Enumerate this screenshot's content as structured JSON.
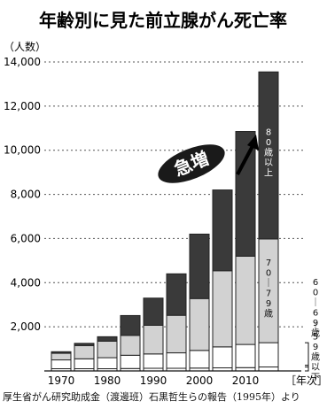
{
  "chart_data": {
    "type": "bar",
    "stacked": true,
    "title": "年齢別に見た前立腺がん死亡率",
    "ylabel": "（人数）",
    "xlabel": "［年次］",
    "ylim": [
      0,
      14000
    ],
    "yticks": [
      2000,
      4000,
      6000,
      8000,
      10000,
      12000,
      14000
    ],
    "ytick_labels": [
      "2,000",
      "4,000",
      "6,000",
      "8,000",
      "10,000",
      "12,000",
      "14,000"
    ],
    "x": [
      1970,
      1975,
      1980,
      1985,
      1990,
      1995,
      2000,
      2005,
      2010,
      2015
    ],
    "xtick_labels": [
      "1970",
      "1980",
      "1990",
      "2000",
      "2010"
    ],
    "xtick_positions": [
      1970,
      1980,
      1990,
      2000,
      2010
    ],
    "series": [
      {
        "values": [
          100,
          100,
          100,
          110,
          120,
          120,
          130,
          140,
          150,
          180
        ]
      },
      {
        "values": [
          400,
          450,
          500,
          600,
          650,
          700,
          800,
          950,
          1050,
          1100
        ]
      },
      {
        "values": [
          300,
          600,
          750,
          900,
          1300,
          1700,
          2350,
          3450,
          4000,
          4700
        ]
      },
      {
        "values": [
          70,
          100,
          200,
          900,
          1230,
          1880,
          2920,
          3660,
          5650,
          7570
        ]
      }
    ],
    "totals": [
      870,
      1250,
      1550,
      2510,
      3300,
      4400,
      6200,
      8200,
      10850,
      13550
    ],
    "segment_labels": [
      {
        "text": "80歳以上",
        "series": 3
      },
      {
        "text": "70〜79歳",
        "series": 2
      },
      {
        "text": "60〜69歳",
        "series": 1
      },
      {
        "text": "〜59歳以下",
        "series": 0
      }
    ],
    "annotation": "急増",
    "colors": {
      "dark": "#3a3a3a",
      "light": "#d2d2d2",
      "white": "#ffffff",
      "outline": "#222222"
    },
    "gridlines": "dotted"
  },
  "source_note": "厚生省がん研究助成金（渡邊班）石黒哲生らの報告（1995年）より"
}
